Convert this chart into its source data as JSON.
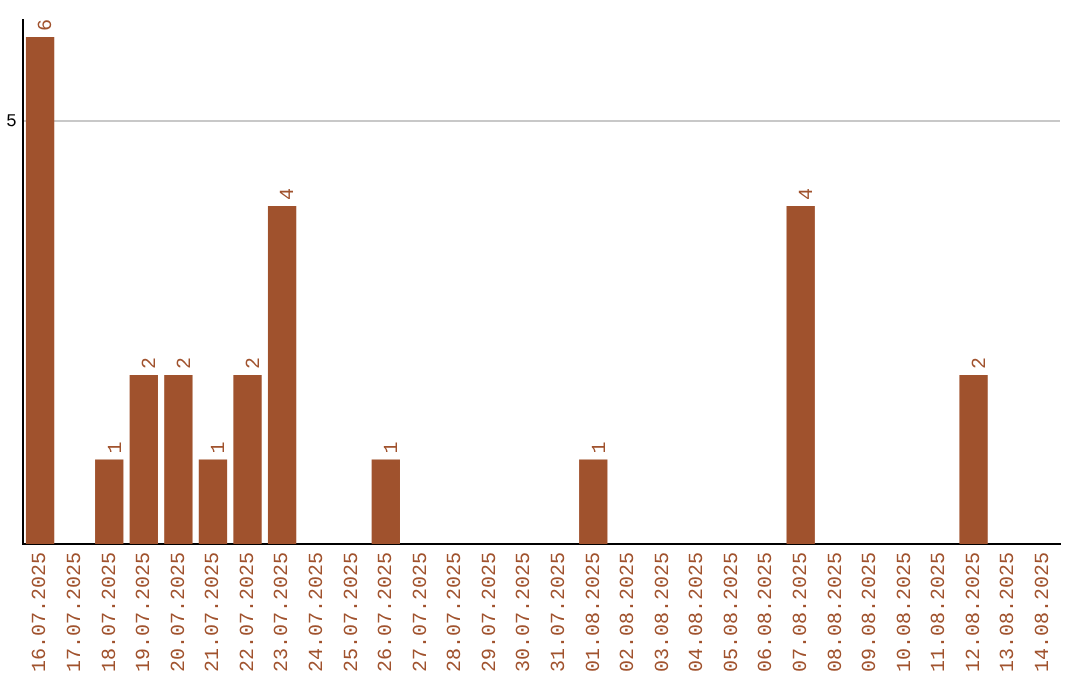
{
  "chart_data": {
    "type": "bar",
    "categories": [
      "16.07.2025",
      "17.07.2025",
      "18.07.2025",
      "19.07.2025",
      "20.07.2025",
      "21.07.2025",
      "22.07.2025",
      "23.07.2025",
      "24.07.2025",
      "25.07.2025",
      "26.07.2025",
      "27.07.2025",
      "28.07.2025",
      "29.07.2025",
      "30.07.2025",
      "31.07.2025",
      "01.08.2025",
      "02.08.2025",
      "03.08.2025",
      "04.08.2025",
      "05.08.2025",
      "06.08.2025",
      "07.08.2025",
      "08.08.2025",
      "09.08.2025",
      "10.08.2025",
      "11.08.2025",
      "12.08.2025",
      "13.08.2025",
      "14.08.2025"
    ],
    "values": [
      6,
      0,
      1,
      2,
      2,
      1,
      2,
      4,
      0,
      0,
      1,
      0,
      0,
      0,
      0,
      0,
      1,
      0,
      0,
      0,
      0,
      0,
      4,
      0,
      0,
      0,
      0,
      2,
      0,
      0
    ],
    "value_labels": [
      "6",
      null,
      "1",
      "2",
      "2",
      "1",
      "2",
      "4",
      null,
      null,
      "1",
      null,
      null,
      null,
      null,
      null,
      "1",
      null,
      null,
      null,
      null,
      null,
      "4",
      null,
      null,
      null,
      null,
      "2",
      null,
      null
    ],
    "color": "#a0522d",
    "ylim": [
      0,
      6.2
    ],
    "yticks": [
      5
    ],
    "grid": "y",
    "legend": false
  }
}
